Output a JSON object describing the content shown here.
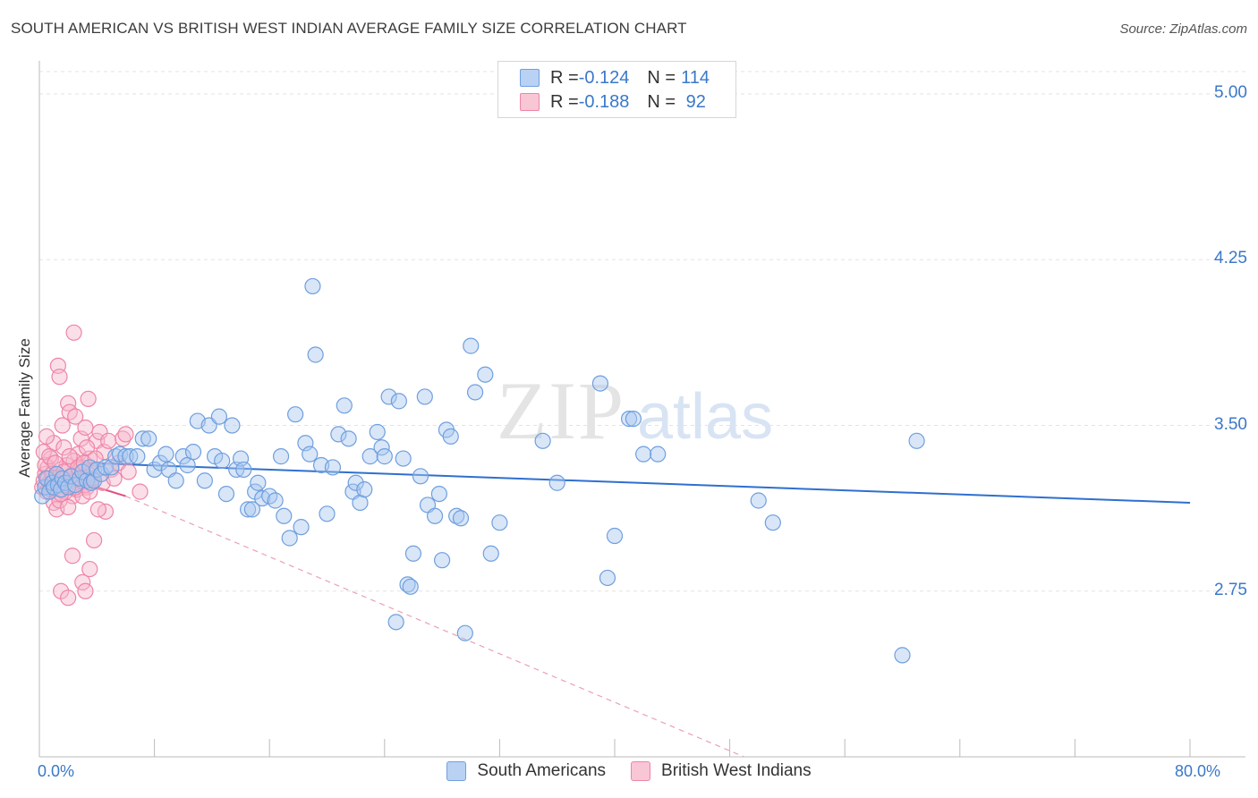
{
  "title": "SOUTH AMERICAN VS BRITISH WEST INDIAN AVERAGE FAMILY SIZE CORRELATION CHART",
  "source": "Source: ZipAtlas.com",
  "watermark": {
    "zip": "ZIP",
    "atlas": "atlas"
  },
  "ylabel": "Average Family Size",
  "x_left_label": "0.0%",
  "x_right_label": "80.0%",
  "y_tick_labels": [
    "5.00",
    "4.25",
    "3.50",
    "2.75"
  ],
  "legend": {
    "rows": [
      {
        "r_label": "R = ",
        "r_value": "-0.124",
        "n_label": "N = ",
        "n_value": "114"
      },
      {
        "r_label": "R = ",
        "r_value": "-0.188",
        "n_label": "N = ",
        "n_value": " 92"
      }
    ]
  },
  "bottom_legend": [
    "South Americans",
    "British West Indians"
  ],
  "colors": {
    "blue_fill": "#a9c8ef",
    "blue_stroke": "#6f9fde",
    "blue_line": "#2f6fcf",
    "pink_fill": "#f6b8cb",
    "pink_stroke": "#ee85a6",
    "pink_line": "#e0507f",
    "grid": "#e3e3e3",
    "tick_text": "#3a78c9"
  },
  "chart_data": {
    "type": "scatter",
    "title": "SOUTH AMERICAN VS BRITISH WEST INDIAN AVERAGE FAMILY SIZE CORRELATION CHART",
    "xlabel": "",
    "ylabel": "Average Family Size",
    "xlim": [
      0,
      80
    ],
    "ylim": [
      2.0,
      5.15
    ],
    "y_ticks": [
      2.75,
      3.5,
      4.25,
      5.0
    ],
    "grid": true,
    "legend_position": "top-center",
    "series": [
      {
        "name": "South Americans",
        "R": -0.124,
        "N": 114,
        "trend": {
          "x": [
            0,
            80
          ],
          "y": [
            3.33,
            3.15
          ],
          "style": "solid"
        },
        "points": [
          [
            0.2,
            3.18
          ],
          [
            0.4,
            3.22
          ],
          [
            0.5,
            3.26
          ],
          [
            0.7,
            3.2
          ],
          [
            0.9,
            3.24
          ],
          [
            1.0,
            3.22
          ],
          [
            1.2,
            3.28
          ],
          [
            1.3,
            3.23
          ],
          [
            1.5,
            3.21
          ],
          [
            1.6,
            3.26
          ],
          [
            1.8,
            3.24
          ],
          [
            2.0,
            3.22
          ],
          [
            2.2,
            3.27
          ],
          [
            2.5,
            3.23
          ],
          [
            2.8,
            3.26
          ],
          [
            3.0,
            3.29
          ],
          [
            3.3,
            3.25
          ],
          [
            3.5,
            3.31
          ],
          [
            3.6,
            3.24
          ],
          [
            3.8,
            3.25
          ],
          [
            4.0,
            3.3
          ],
          [
            4.3,
            3.28
          ],
          [
            4.6,
            3.31
          ],
          [
            5.0,
            3.31
          ],
          [
            5.3,
            3.36
          ],
          [
            5.6,
            3.37
          ],
          [
            6.0,
            3.36
          ],
          [
            6.3,
            3.36
          ],
          [
            6.8,
            3.36
          ],
          [
            7.2,
            3.44
          ],
          [
            7.6,
            3.44
          ],
          [
            8.0,
            3.3
          ],
          [
            8.4,
            3.33
          ],
          [
            8.8,
            3.37
          ],
          [
            9.0,
            3.3
          ],
          [
            9.5,
            3.25
          ],
          [
            10.0,
            3.36
          ],
          [
            10.3,
            3.32
          ],
          [
            10.7,
            3.38
          ],
          [
            11.0,
            3.52
          ],
          [
            11.5,
            3.25
          ],
          [
            11.8,
            3.5
          ],
          [
            12.2,
            3.36
          ],
          [
            12.5,
            3.54
          ],
          [
            12.7,
            3.34
          ],
          [
            13.0,
            3.19
          ],
          [
            13.4,
            3.5
          ],
          [
            13.7,
            3.3
          ],
          [
            14.0,
            3.35
          ],
          [
            14.2,
            3.3
          ],
          [
            14.5,
            3.12
          ],
          [
            14.8,
            3.12
          ],
          [
            15.0,
            3.2
          ],
          [
            15.2,
            3.24
          ],
          [
            15.5,
            3.17
          ],
          [
            16.0,
            3.18
          ],
          [
            16.4,
            3.16
          ],
          [
            16.8,
            3.36
          ],
          [
            17.0,
            3.09
          ],
          [
            17.4,
            2.99
          ],
          [
            17.8,
            3.55
          ],
          [
            18.2,
            3.04
          ],
          [
            18.5,
            3.42
          ],
          [
            18.8,
            3.37
          ],
          [
            19.0,
            4.13
          ],
          [
            19.2,
            3.82
          ],
          [
            19.6,
            3.32
          ],
          [
            20.0,
            3.1
          ],
          [
            20.4,
            3.31
          ],
          [
            20.8,
            3.46
          ],
          [
            21.2,
            3.59
          ],
          [
            21.5,
            3.44
          ],
          [
            21.8,
            3.2
          ],
          [
            22.0,
            3.24
          ],
          [
            22.3,
            3.15
          ],
          [
            22.6,
            3.21
          ],
          [
            23.0,
            3.36
          ],
          [
            23.5,
            3.47
          ],
          [
            23.8,
            3.4
          ],
          [
            24.0,
            3.36
          ],
          [
            24.3,
            3.63
          ],
          [
            24.8,
            2.61
          ],
          [
            25.0,
            3.61
          ],
          [
            25.3,
            3.35
          ],
          [
            25.6,
            2.78
          ],
          [
            25.8,
            2.77
          ],
          [
            26.0,
            2.92
          ],
          [
            26.5,
            3.27
          ],
          [
            26.8,
            3.63
          ],
          [
            27.0,
            3.14
          ],
          [
            27.5,
            3.09
          ],
          [
            27.8,
            3.19
          ],
          [
            28.0,
            2.89
          ],
          [
            28.3,
            3.48
          ],
          [
            28.6,
            3.45
          ],
          [
            29.0,
            3.09
          ],
          [
            29.3,
            3.08
          ],
          [
            29.6,
            2.56
          ],
          [
            30.0,
            3.86
          ],
          [
            30.3,
            3.65
          ],
          [
            31.0,
            3.73
          ],
          [
            31.4,
            2.92
          ],
          [
            32.0,
            3.06
          ],
          [
            35.0,
            3.43
          ],
          [
            36.0,
            3.24
          ],
          [
            39.0,
            3.69
          ],
          [
            39.5,
            2.81
          ],
          [
            40.0,
            3.0
          ],
          [
            41.0,
            3.53
          ],
          [
            41.3,
            3.53
          ],
          [
            42.0,
            3.37
          ],
          [
            43.0,
            3.37
          ],
          [
            50.0,
            3.16
          ],
          [
            51.0,
            3.06
          ],
          [
            61.0,
            3.43
          ],
          [
            60.0,
            2.46
          ]
        ]
      },
      {
        "name": "British West Indians",
        "R": -0.188,
        "N": 92,
        "trend_solid": {
          "x": [
            0,
            6
          ],
          "y": [
            3.3,
            3.18
          ],
          "style": "solid"
        },
        "trend_dashed": {
          "x": [
            6,
            49
          ],
          "y": [
            3.18,
            2.0
          ],
          "style": "dashed"
        },
        "points": [
          [
            0.2,
            3.22
          ],
          [
            0.3,
            3.25
          ],
          [
            0.4,
            3.28
          ],
          [
            0.5,
            3.2
          ],
          [
            0.6,
            3.31
          ],
          [
            0.7,
            3.24
          ],
          [
            0.8,
            3.35
          ],
          [
            0.9,
            3.22
          ],
          [
            1.0,
            3.42
          ],
          [
            1.1,
            3.26
          ],
          [
            1.2,
            3.19
          ],
          [
            1.3,
            3.77
          ],
          [
            1.4,
            3.72
          ],
          [
            1.5,
            3.3
          ],
          [
            1.6,
            3.5
          ],
          [
            1.7,
            3.4
          ],
          [
            1.8,
            3.26
          ],
          [
            1.9,
            3.32
          ],
          [
            2.0,
            3.6
          ],
          [
            2.1,
            3.56
          ],
          [
            2.2,
            3.22
          ],
          [
            2.3,
            3.18
          ],
          [
            2.4,
            3.92
          ],
          [
            2.5,
            3.54
          ],
          [
            2.6,
            3.26
          ],
          [
            2.7,
            3.37
          ],
          [
            2.8,
            3.28
          ],
          [
            2.9,
            3.44
          ],
          [
            3.0,
            3.31
          ],
          [
            3.1,
            3.26
          ],
          [
            3.2,
            3.49
          ],
          [
            3.3,
            3.22
          ],
          [
            3.4,
            3.62
          ],
          [
            3.5,
            3.35
          ],
          [
            3.6,
            3.24
          ],
          [
            3.8,
            3.3
          ],
          [
            4.0,
            3.43
          ],
          [
            4.2,
            3.47
          ],
          [
            4.4,
            3.24
          ],
          [
            4.5,
            3.38
          ],
          [
            4.6,
            3.11
          ],
          [
            4.8,
            3.43
          ],
          [
            5.0,
            3.3
          ],
          [
            5.2,
            3.26
          ],
          [
            5.5,
            3.33
          ],
          [
            5.8,
            3.44
          ],
          [
            6.0,
            3.46
          ],
          [
            6.2,
            3.29
          ],
          [
            0.4,
            3.32
          ],
          [
            0.6,
            3.26
          ],
          [
            0.8,
            3.21
          ],
          [
            1.0,
            3.15
          ],
          [
            1.2,
            3.12
          ],
          [
            1.4,
            3.16
          ],
          [
            1.6,
            3.25
          ],
          [
            1.8,
            3.2
          ],
          [
            2.0,
            3.13
          ],
          [
            2.2,
            3.27
          ],
          [
            2.4,
            3.34
          ],
          [
            2.6,
            3.21
          ],
          [
            2.8,
            3.3
          ],
          [
            3.0,
            3.18
          ],
          [
            3.2,
            3.23
          ],
          [
            3.4,
            3.28
          ],
          [
            1.5,
            2.75
          ],
          [
            2.0,
            2.72
          ],
          [
            2.3,
            2.91
          ],
          [
            3.0,
            2.79
          ],
          [
            3.2,
            2.75
          ],
          [
            3.5,
            2.85
          ],
          [
            3.8,
            2.98
          ],
          [
            7.0,
            3.2
          ],
          [
            0.3,
            3.38
          ],
          [
            0.5,
            3.45
          ],
          [
            0.7,
            3.36
          ],
          [
            0.9,
            3.28
          ],
          [
            1.1,
            3.33
          ],
          [
            1.3,
            3.24
          ],
          [
            1.5,
            3.19
          ],
          [
            1.7,
            3.29
          ],
          [
            1.9,
            3.23
          ],
          [
            2.1,
            3.36
          ],
          [
            2.3,
            3.27
          ],
          [
            2.5,
            3.22
          ],
          [
            2.7,
            3.31
          ],
          [
            2.9,
            3.25
          ],
          [
            3.1,
            3.33
          ],
          [
            3.3,
            3.4
          ],
          [
            3.5,
            3.2
          ],
          [
            3.7,
            3.26
          ],
          [
            3.9,
            3.35
          ],
          [
            4.1,
            3.12
          ]
        ]
      }
    ]
  }
}
